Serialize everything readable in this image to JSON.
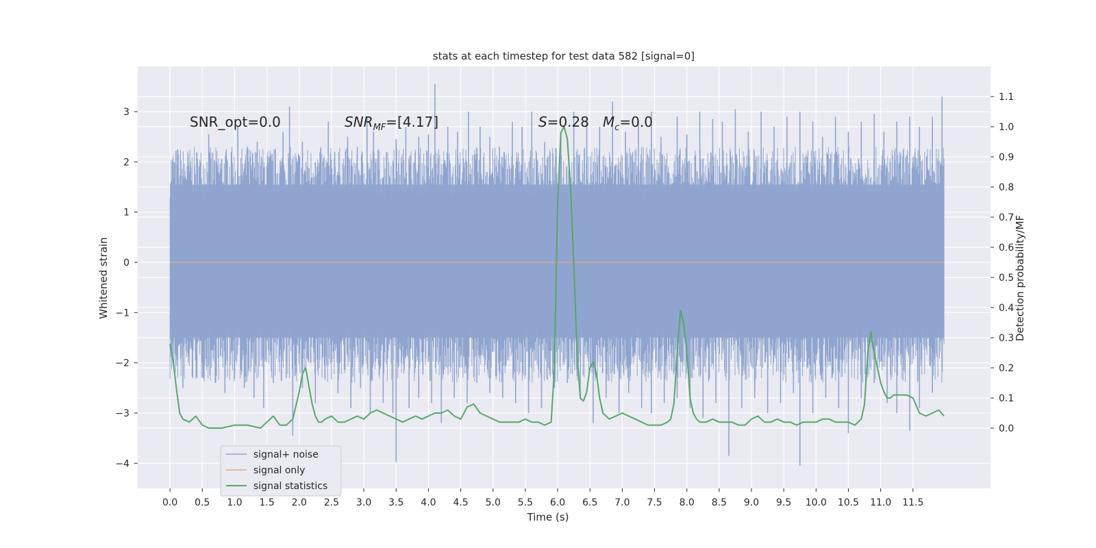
{
  "chart_data": {
    "type": "line",
    "title": "stats at each timestep for test data 582 [signal=0]",
    "xlabel": "Time (s)",
    "ylabel_left": "Whitened strain",
    "ylabel_right": "Detection probability/MF",
    "xlim": [
      -0.5,
      12.7
    ],
    "ylim_left": [
      -4.5,
      3.9
    ],
    "ylim_right": [
      -0.2,
      1.2
    ],
    "grid": true,
    "legend_placement": "lower-left",
    "x_ticks": [
      "0.0",
      "0.5",
      "1.0",
      "1.5",
      "2.0",
      "2.5",
      "3.0",
      "3.5",
      "4.0",
      "4.5",
      "5.0",
      "5.5",
      "6.0",
      "6.5",
      "7.0",
      "7.5",
      "8.0",
      "8.5",
      "9.0",
      "9.5",
      "10.0",
      "10.5",
      "11.0",
      "11.5"
    ],
    "y_ticks_left": [
      "3",
      "2",
      "1",
      "0",
      "−1",
      "−2",
      "−3",
      "−4"
    ],
    "y_ticks_right": [
      "1.1",
      "1.0",
      "0.9",
      "0.8",
      "0.7",
      "0.6",
      "0.5",
      "0.4",
      "0.3",
      "0.2",
      "0.1",
      "0.0"
    ],
    "annotations": {
      "snr_opt": "SNR_opt=0.0",
      "snr_mf_main": "SNR",
      "snr_mf_sub": "MF",
      "snr_mf_value": "=[4.17]",
      "stat_symbol": "S",
      "stat_value": "=0.28",
      "mc_symbol": "M",
      "mc_sub": "c",
      "mc_value": "=0.0"
    },
    "series": [
      {
        "name": "signal+ noise",
        "color": "#8fa5cf",
        "x_range": [
          0.0,
          11.98
        ],
        "band_core": [
          -1.5,
          1.55
        ],
        "note_values": "noise trace spans approx -4.0 to 3.55 strain",
        "spikes_up": [
          [
            0.05,
            2.0
          ],
          [
            0.12,
            2.25
          ],
          [
            0.28,
            2.1
          ],
          [
            0.45,
            1.9
          ],
          [
            0.6,
            2.55
          ],
          [
            0.72,
            2.0
          ],
          [
            0.95,
            2.2
          ],
          [
            1.05,
            2.7
          ],
          [
            1.2,
            2.3
          ],
          [
            1.35,
            2.4
          ],
          [
            1.55,
            2.1
          ],
          [
            1.75,
            2.6
          ],
          [
            1.85,
            3.1
          ],
          [
            2.05,
            2.4
          ],
          [
            2.25,
            2.0
          ],
          [
            2.45,
            2.8
          ],
          [
            2.55,
            2.2
          ],
          [
            2.75,
            2.5
          ],
          [
            2.9,
            2.3
          ],
          [
            3.05,
            2.9
          ],
          [
            3.15,
            2.6
          ],
          [
            3.35,
            2.2
          ],
          [
            3.5,
            2.45
          ],
          [
            3.65,
            2.7
          ],
          [
            3.85,
            2.5
          ],
          [
            4.0,
            2.55
          ],
          [
            4.1,
            3.55
          ],
          [
            4.3,
            2.7
          ],
          [
            4.45,
            2.6
          ],
          [
            4.62,
            3.0
          ],
          [
            4.8,
            2.7
          ],
          [
            4.95,
            2.5
          ],
          [
            5.1,
            2.3
          ],
          [
            5.3,
            2.8
          ],
          [
            5.45,
            2.7
          ],
          [
            5.6,
            3.0
          ],
          [
            5.8,
            2.4
          ],
          [
            6.05,
            2.6
          ],
          [
            6.25,
            3.0
          ],
          [
            6.45,
            2.9
          ],
          [
            6.65,
            2.7
          ],
          [
            6.85,
            3.2
          ],
          [
            7.05,
            2.6
          ],
          [
            7.25,
            2.8
          ],
          [
            7.45,
            3.0
          ],
          [
            7.6,
            2.5
          ],
          [
            7.85,
            2.9
          ],
          [
            8.0,
            2.55
          ],
          [
            8.2,
            3.0
          ],
          [
            8.4,
            2.85
          ],
          [
            8.55,
            2.8
          ],
          [
            8.75,
            3.05
          ],
          [
            8.95,
            2.6
          ],
          [
            9.15,
            3.0
          ],
          [
            9.35,
            2.7
          ],
          [
            9.55,
            2.9
          ],
          [
            9.75,
            3.0
          ],
          [
            9.95,
            2.8
          ],
          [
            10.1,
            2.5
          ],
          [
            10.3,
            2.9
          ],
          [
            10.5,
            2.6
          ],
          [
            10.7,
            2.8
          ],
          [
            10.9,
            2.95
          ],
          [
            11.05,
            2.6
          ],
          [
            11.25,
            2.8
          ],
          [
            11.45,
            2.9
          ],
          [
            11.6,
            2.7
          ],
          [
            11.8,
            2.9
          ],
          [
            11.95,
            3.3
          ]
        ],
        "spikes_down": [
          [
            0.05,
            -1.2
          ],
          [
            0.2,
            -2.5
          ],
          [
            0.35,
            -2.3
          ],
          [
            0.5,
            -2.0
          ],
          [
            0.7,
            -2.4
          ],
          [
            0.85,
            -2.6
          ],
          [
            1.0,
            -2.2
          ],
          [
            1.15,
            -2.5
          ],
          [
            1.3,
            -2.7
          ],
          [
            1.45,
            -2.9
          ],
          [
            1.6,
            -2.4
          ],
          [
            1.8,
            -2.3
          ],
          [
            1.9,
            -3.45
          ],
          [
            2.05,
            -2.5
          ],
          [
            2.25,
            -2.8
          ],
          [
            2.4,
            -2.3
          ],
          [
            2.6,
            -2.6
          ],
          [
            2.8,
            -2.9
          ],
          [
            2.95,
            -2.5
          ],
          [
            3.1,
            -3.0
          ],
          [
            3.3,
            -2.8
          ],
          [
            3.45,
            -3.0
          ],
          [
            3.5,
            -3.98
          ],
          [
            3.7,
            -2.9
          ],
          [
            3.85,
            -2.7
          ],
          [
            4.05,
            -2.8
          ],
          [
            4.2,
            -3.2
          ],
          [
            4.4,
            -2.7
          ],
          [
            4.6,
            -2.8
          ],
          [
            4.75,
            -2.4
          ],
          [
            4.95,
            -2.6
          ],
          [
            5.15,
            -2.7
          ],
          [
            5.35,
            -2.8
          ],
          [
            5.55,
            -3.0
          ],
          [
            5.75,
            -2.9
          ],
          [
            5.95,
            -2.5
          ],
          [
            6.15,
            -2.4
          ],
          [
            6.35,
            -2.7
          ],
          [
            6.55,
            -3.2
          ],
          [
            6.75,
            -2.7
          ],
          [
            6.95,
            -3.0
          ],
          [
            7.1,
            -2.6
          ],
          [
            7.3,
            -2.9
          ],
          [
            7.45,
            -3.0
          ],
          [
            7.65,
            -2.8
          ],
          [
            7.85,
            -2.7
          ],
          [
            8.05,
            -2.9
          ],
          [
            8.25,
            -3.1
          ],
          [
            8.45,
            -2.8
          ],
          [
            8.65,
            -3.85
          ],
          [
            8.85,
            -2.9
          ],
          [
            9.05,
            -2.7
          ],
          [
            9.25,
            -3.0
          ],
          [
            9.45,
            -2.8
          ],
          [
            9.65,
            -2.6
          ],
          [
            9.75,
            -4.05
          ],
          [
            9.95,
            -3.0
          ],
          [
            10.15,
            -2.7
          ],
          [
            10.35,
            -2.9
          ],
          [
            10.5,
            -3.4
          ],
          [
            10.7,
            -2.7
          ],
          [
            10.9,
            -2.4
          ],
          [
            11.1,
            -2.8
          ],
          [
            11.25,
            -3.0
          ],
          [
            11.45,
            -3.35
          ],
          [
            11.6,
            -2.9
          ],
          [
            11.8,
            -2.6
          ],
          [
            11.95,
            -2.0
          ]
        ]
      },
      {
        "name": "signal only",
        "color": "#e3a68a",
        "x": [
          0.0,
          11.98
        ],
        "y": [
          0.0,
          0.0
        ]
      },
      {
        "name": "signal statistics",
        "color": "#55a868",
        "axis": "right",
        "x": [
          0.0,
          0.05,
          0.1,
          0.15,
          0.2,
          0.3,
          0.4,
          0.5,
          0.6,
          0.8,
          1.0,
          1.2,
          1.4,
          1.5,
          1.6,
          1.7,
          1.8,
          1.9,
          2.0,
          2.05,
          2.1,
          2.15,
          2.2,
          2.25,
          2.3,
          2.35,
          2.4,
          2.5,
          2.6,
          2.7,
          2.8,
          2.9,
          3.0,
          3.1,
          3.2,
          3.3,
          3.4,
          3.5,
          3.6,
          3.7,
          3.8,
          3.9,
          4.0,
          4.1,
          4.2,
          4.3,
          4.4,
          4.5,
          4.6,
          4.7,
          4.8,
          4.9,
          5.0,
          5.1,
          5.2,
          5.3,
          5.4,
          5.5,
          5.6,
          5.7,
          5.8,
          5.9,
          5.95,
          6.0,
          6.05,
          6.1,
          6.15,
          6.2,
          6.25,
          6.3,
          6.35,
          6.4,
          6.45,
          6.5,
          6.55,
          6.6,
          6.65,
          6.7,
          6.8,
          6.9,
          7.0,
          7.1,
          7.2,
          7.3,
          7.4,
          7.5,
          7.6,
          7.7,
          7.75,
          7.8,
          7.85,
          7.9,
          7.95,
          8.0,
          8.05,
          8.1,
          8.15,
          8.2,
          8.3,
          8.4,
          8.5,
          8.6,
          8.7,
          8.8,
          8.9,
          9.0,
          9.1,
          9.2,
          9.3,
          9.4,
          9.5,
          9.6,
          9.7,
          9.8,
          9.9,
          10.0,
          10.1,
          10.2,
          10.3,
          10.4,
          10.5,
          10.6,
          10.7,
          10.75,
          10.8,
          10.85,
          10.9,
          10.95,
          11.0,
          11.05,
          11.1,
          11.15,
          11.2,
          11.3,
          11.4,
          11.5,
          11.6,
          11.7,
          11.8,
          11.9,
          11.98
        ],
        "y": [
          0.28,
          0.22,
          0.13,
          0.05,
          0.03,
          0.02,
          0.04,
          0.01,
          0.0,
          0.0,
          0.01,
          0.01,
          0.0,
          0.02,
          0.04,
          0.01,
          0.01,
          0.03,
          0.12,
          0.18,
          0.2,
          0.14,
          0.08,
          0.04,
          0.02,
          0.02,
          0.03,
          0.04,
          0.02,
          0.02,
          0.03,
          0.04,
          0.03,
          0.05,
          0.06,
          0.05,
          0.04,
          0.03,
          0.02,
          0.03,
          0.04,
          0.03,
          0.04,
          0.05,
          0.05,
          0.06,
          0.04,
          0.03,
          0.07,
          0.08,
          0.05,
          0.04,
          0.03,
          0.02,
          0.02,
          0.02,
          0.02,
          0.03,
          0.02,
          0.02,
          0.01,
          0.02,
          0.2,
          0.75,
          0.98,
          1.0,
          0.96,
          0.8,
          0.55,
          0.25,
          0.1,
          0.09,
          0.12,
          0.2,
          0.22,
          0.18,
          0.1,
          0.05,
          0.03,
          0.04,
          0.05,
          0.04,
          0.03,
          0.02,
          0.01,
          0.01,
          0.01,
          0.02,
          0.03,
          0.08,
          0.25,
          0.39,
          0.35,
          0.25,
          0.1,
          0.05,
          0.03,
          0.02,
          0.02,
          0.03,
          0.02,
          0.02,
          0.02,
          0.01,
          0.01,
          0.03,
          0.04,
          0.02,
          0.02,
          0.03,
          0.02,
          0.02,
          0.01,
          0.02,
          0.02,
          0.02,
          0.03,
          0.03,
          0.02,
          0.02,
          0.02,
          0.01,
          0.03,
          0.08,
          0.25,
          0.32,
          0.25,
          0.2,
          0.15,
          0.12,
          0.1,
          0.1,
          0.11,
          0.11,
          0.11,
          0.1,
          0.05,
          0.04,
          0.05,
          0.06,
          0.04
        ]
      }
    ]
  }
}
